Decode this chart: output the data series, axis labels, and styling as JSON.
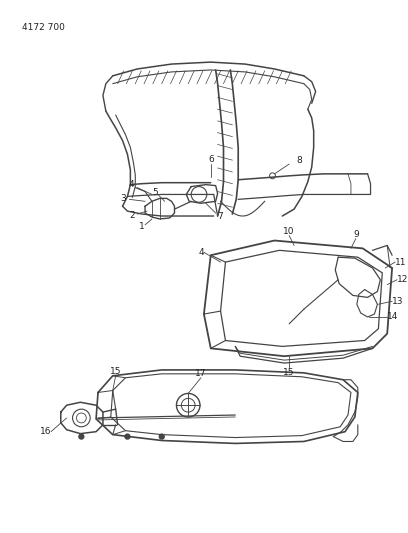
{
  "title": "4172 700",
  "bg_color": "#ffffff",
  "line_color": "#444444",
  "text_color": "#222222",
  "fig_width": 4.08,
  "fig_height": 5.33,
  "dpi": 100
}
